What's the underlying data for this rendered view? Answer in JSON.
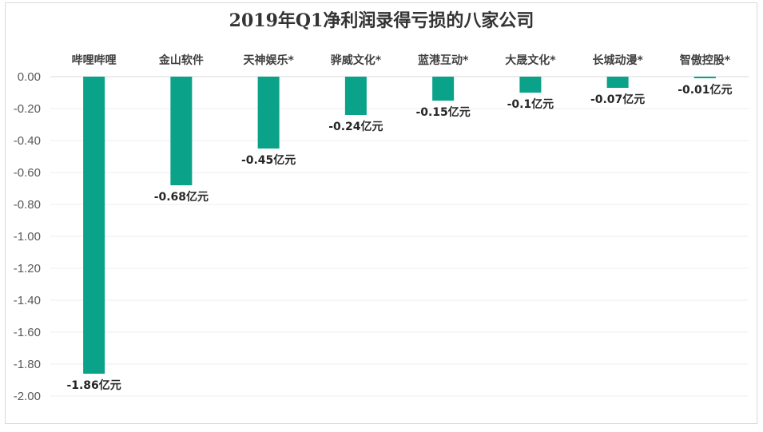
{
  "chart_data": {
    "type": "bar",
    "title": "2019年Q1净利润录得亏损的八家公司",
    "categories": [
      "哔哩哔哩",
      "金山软件",
      "天神娱乐*",
      "骅威文化*",
      "蓝港互动*",
      "大晟文化*",
      "长城动漫*",
      "智傲控股*"
    ],
    "values": [
      -1.86,
      -0.68,
      -0.45,
      -0.24,
      -0.15,
      -0.1,
      -0.07,
      -0.01
    ],
    "data_labels": [
      "-1.86亿元",
      "-0.68亿元",
      "-0.45亿元",
      "-0.24亿元",
      "-0.15亿元",
      "-0.1亿元",
      "-0.07亿元",
      "-0.01亿元"
    ],
    "y_ticks": [
      "0.00",
      "-0.20",
      "-0.40",
      "-0.60",
      "-0.80",
      "-1.00",
      "-1.20",
      "-1.40",
      "-1.60",
      "-1.80",
      "-2.00"
    ],
    "ylim": [
      -2.0,
      0.0
    ],
    "category_axis_position": "top",
    "grid": true,
    "xlabel": "",
    "ylabel": "",
    "colors": {
      "bar": "#0aa289",
      "grid": "#eeeeee",
      "axis": "#d9d9d9"
    }
  }
}
